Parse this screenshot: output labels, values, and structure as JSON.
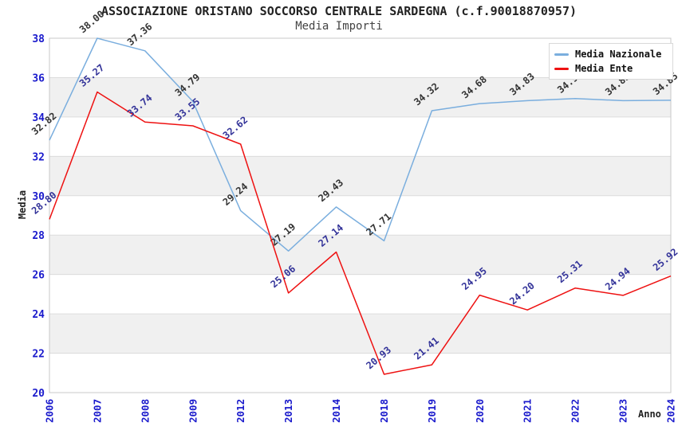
{
  "title": "ASSOCIAZIONE ORISTANO SOCCORSO CENTRALE SARDEGNA (c.f.90018870957)",
  "subtitle": "Media Importi",
  "chart_data": {
    "type": "line",
    "categories": [
      "2006",
      "2007",
      "2008",
      "2009",
      "2012",
      "2013",
      "2014",
      "2018",
      "2019",
      "2020",
      "2021",
      "2022",
      "2023",
      "2024"
    ],
    "series": [
      {
        "name": "Media Nazionale",
        "color": "#7aaede",
        "label_color": "#333333",
        "values": [
          32.82,
          38.0,
          37.36,
          34.79,
          29.24,
          27.19,
          29.43,
          27.71,
          34.32,
          34.68,
          34.83,
          34.94,
          34.83,
          34.85
        ]
      },
      {
        "name": "Media Ente",
        "color": "#ee1111",
        "label_color": "#333399",
        "values": [
          28.8,
          35.27,
          33.74,
          33.55,
          32.62,
          25.06,
          27.14,
          20.93,
          21.41,
          24.95,
          24.2,
          25.31,
          24.94,
          25.92
        ]
      }
    ],
    "xlabel": "Anno",
    "ylabel": "Media",
    "ylim": [
      20,
      38
    ],
    "yticks": [
      20,
      22,
      24,
      26,
      28,
      30,
      32,
      34,
      36,
      38
    ],
    "grid": true,
    "legend_position": "top-right",
    "tick_label_color": "#1a1acc",
    "grid_color": "#dcdcdc",
    "band_colors": [
      "#ffffff",
      "#f0f0f0"
    ],
    "plot_border_color": "#c8c8c8"
  }
}
